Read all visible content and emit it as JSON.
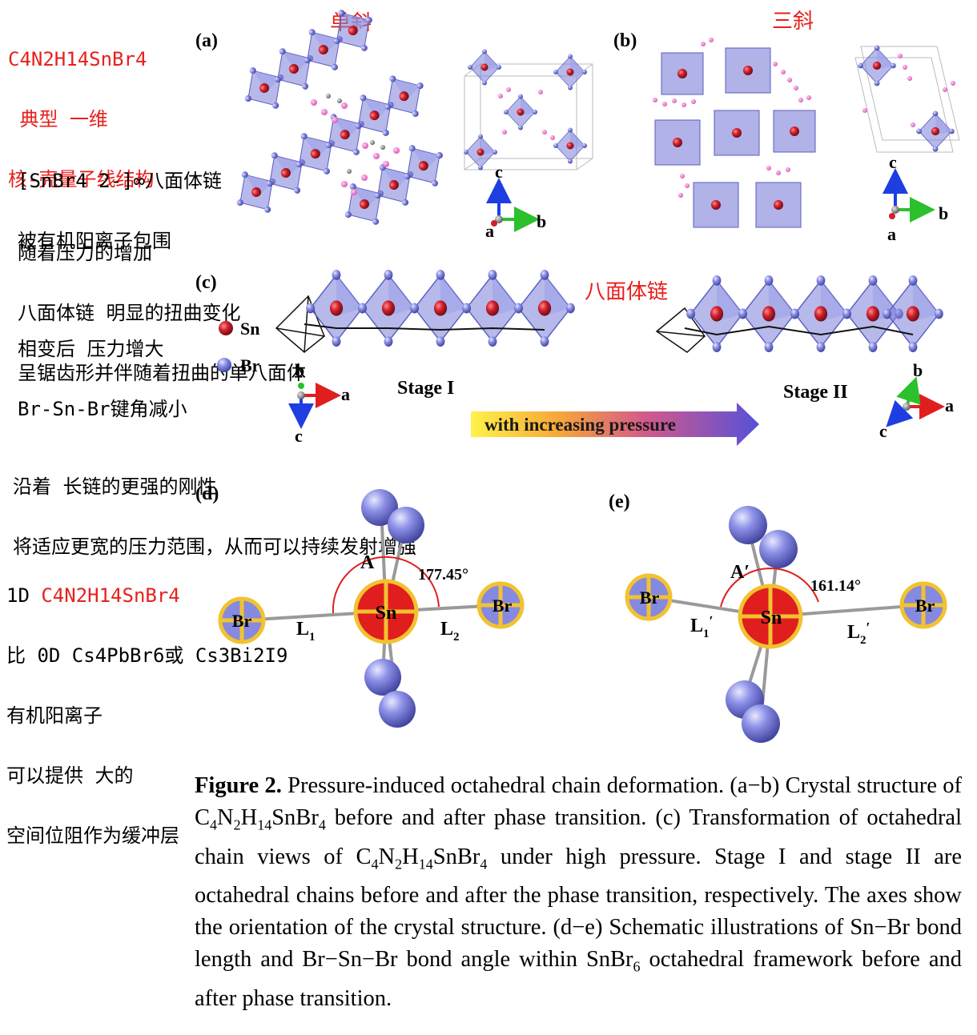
{
  "notes": {
    "top_left": [
      "C4N2H14SnBr4",
      " 典型 一维",
      "核-壳量子线结构"
    ],
    "chain_desc": [
      "[SnBr4 2-]∞八面体链",
      "被有机阳离子包围"
    ],
    "pressure_desc": [
      "随着压力的增加",
      "八面体链 明显的扭曲变化",
      "呈锯齿形并伴随着扭曲的单八面体"
    ],
    "phase_desc": [
      "相变后 压力增大",
      "Br-Sn-Br键角减小"
    ],
    "rigidity_desc": [
      "沿着 长链的更强的刚性",
      "将适应更宽的压力范围，从而可以持续发射增强"
    ],
    "compare_1d": "1D ",
    "compare_formula": "C4N2H14SnBr4",
    "compare_lines": [
      "比 0D Cs4PbBr6或 Cs3Bi2I9",
      "有机阳离子",
      "可以提供 大的",
      "空间位阻作为缓冲层"
    ],
    "monoclinic": "单斜",
    "triclinic": "三斜",
    "octa_chain": "八面体链"
  },
  "panels": {
    "a": "(a)",
    "b": "(b)",
    "c": "(c)",
    "d": "(d)",
    "e": "(e)"
  },
  "panel_c": {
    "legend_sn": "Sn",
    "legend_br": "Br",
    "stage1": "Stage I",
    "stage2": "Stage II",
    "arrow_text": "with increasing pressure"
  },
  "axes": {
    "c": "c",
    "b": "b",
    "a": "a"
  },
  "panel_d": {
    "angle": "177.45°",
    "angle_label": "A",
    "center": "Sn",
    "br": "Br",
    "l1": "L",
    "l1_sub": "1",
    "l2": "L",
    "l2_sub": "2"
  },
  "panel_e": {
    "angle": "161.14°",
    "angle_label": "A′",
    "center": "Sn",
    "br": "Br",
    "l1": "L",
    "l1_sub": "1",
    "l1_prime": "′",
    "l2": "L",
    "l2_sub": "2",
    "l2_prime": "′"
  },
  "caption": {
    "label": "Figure 2.",
    "text1": " Pressure-induced octahedral chain deformation. (a−b) Crystal structure of ",
    "f1": "C4N2H14SnBr4",
    "text2": " before and after phase transition. (c) Transformation of octahedral chain views of ",
    "f2": "C4N2H14SnBr4",
    "text3": " under high pressure. Stage I and stage II are octahedral chains before and after the phase transition, respectively. The axes show the orientation of the crystal structure. (d−e) Schematic illustrations of Sn−Br bond length and Br−Sn−Br bond angle within ",
    "f3": "SnBr6",
    "text4": " octahedral framework before and after phase transition."
  },
  "colors": {
    "note_red": "#e8201c",
    "octahedron": "#7b7fd8",
    "sn": "#cc1e2c",
    "br": "#8589e0",
    "ring": "#f2c230"
  }
}
